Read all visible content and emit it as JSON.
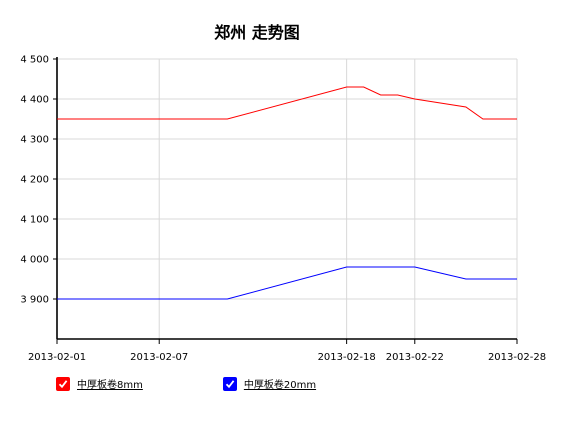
{
  "chart_data": {
    "type": "line",
    "title": "郑州 走势图",
    "x": [
      "2013-02-01",
      "2013-02-04",
      "2013-02-07",
      "2013-02-11",
      "2013-02-18",
      "2013-02-19",
      "2013-02-20",
      "2013-02-21",
      "2013-02-22",
      "2013-02-25",
      "2013-02-26",
      "2013-02-27",
      "2013-02-28"
    ],
    "x_ticks": [
      "2013-02-01",
      "2013-02-07",
      "2013-02-18",
      "2013-02-22",
      "2013-02-28"
    ],
    "y_ticks": [
      "3 900",
      "4 000",
      "4 100",
      "4 200",
      "4 300",
      "4 400",
      "4 500"
    ],
    "ylim": [
      3800,
      4500
    ],
    "grid": true,
    "legend_position": "bottom-left",
    "series": [
      {
        "name": "中厚板卷8mm",
        "color": "#ff0000",
        "values": [
          4350,
          4350,
          4350,
          4350,
          4430,
          4430,
          4410,
          4410,
          4400,
          4380,
          4350,
          4350,
          4350
        ]
      },
      {
        "name": "中厚板卷20mm",
        "color": "#0000ff",
        "values": [
          3900,
          3900,
          3900,
          3900,
          3980,
          3980,
          3980,
          3980,
          3980,
          3950,
          3950,
          3950,
          3950
        ]
      }
    ]
  }
}
